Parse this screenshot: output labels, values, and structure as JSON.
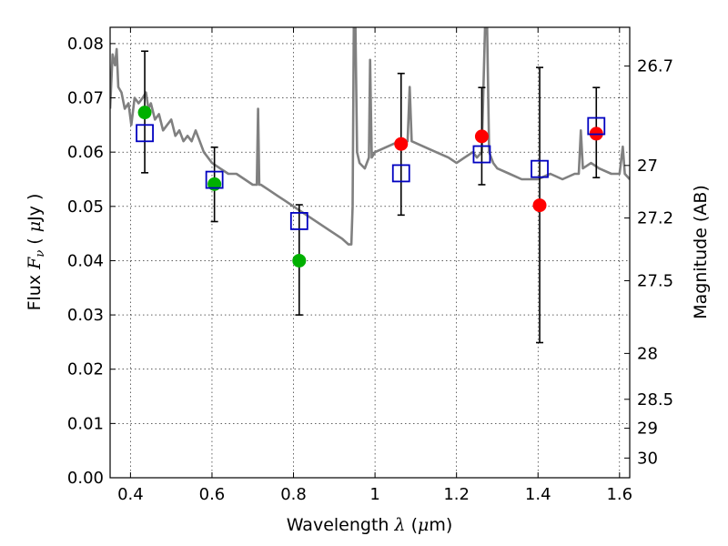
{
  "chart_data": {
    "type": "scatter",
    "xlabel": {
      "pre": "Wavelength  ",
      "sym": "λ",
      "post": " (",
      "mu": "μ",
      "unit": "m)"
    },
    "ylabel": {
      "pre": "Flux  ",
      "sym": "F",
      "sub": "ν",
      "post": "  ( ",
      "mu": "μ",
      "unit": "Jy )"
    },
    "y2label": "Magnitude (AB)",
    "xlim": [
      0.35,
      1.625
    ],
    "ylim": [
      0.0,
      0.083
    ],
    "grid": true,
    "x_ticks": [
      0.4,
      0.6,
      0.8,
      1.0,
      1.2,
      1.4,
      1.6
    ],
    "x_tick_labels": [
      "0.4",
      "0.6",
      "0.8",
      "1",
      "1.2",
      "1.4",
      "1.6"
    ],
    "y_ticks": [
      0.0,
      0.01,
      0.02,
      0.03,
      0.04,
      0.05,
      0.06,
      0.07,
      0.08
    ],
    "y_tick_labels": [
      "0.00",
      "0.01",
      "0.02",
      "0.03",
      "0.04",
      "0.05",
      "0.06",
      "0.07",
      "0.08"
    ],
    "mag_ticks": [
      26.7,
      27.0,
      27.2,
      27.5,
      28.0,
      28.5,
      29.0,
      30.0
    ],
    "mag_tick_labels": [
      "26.7",
      "27",
      "27.2",
      "27.5",
      "28",
      "28.5",
      "29",
      "30"
    ],
    "colors": {
      "model": "#808080",
      "obs_optical": "#00b000",
      "obs_ir": "#ff0000",
      "synthetic": "#0000c0",
      "errorbar": "#000000"
    },
    "model_spectrum": [
      [
        0.35,
        0.068
      ],
      [
        0.356,
        0.078
      ],
      [
        0.362,
        0.076
      ],
      [
        0.366,
        0.079
      ],
      [
        0.37,
        0.072
      ],
      [
        0.378,
        0.071
      ],
      [
        0.386,
        0.068
      ],
      [
        0.395,
        0.069
      ],
      [
        0.402,
        0.065
      ],
      [
        0.41,
        0.07
      ],
      [
        0.42,
        0.069
      ],
      [
        0.43,
        0.07
      ],
      [
        0.438,
        0.071
      ],
      [
        0.444,
        0.068
      ],
      [
        0.45,
        0.069
      ],
      [
        0.46,
        0.066
      ],
      [
        0.47,
        0.067
      ],
      [
        0.48,
        0.064
      ],
      [
        0.49,
        0.065
      ],
      [
        0.5,
        0.066
      ],
      [
        0.51,
        0.063
      ],
      [
        0.52,
        0.064
      ],
      [
        0.53,
        0.062
      ],
      [
        0.54,
        0.063
      ],
      [
        0.55,
        0.062
      ],
      [
        0.56,
        0.064
      ],
      [
        0.57,
        0.062
      ],
      [
        0.58,
        0.06
      ],
      [
        0.59,
        0.059
      ],
      [
        0.6,
        0.058
      ],
      [
        0.62,
        0.057
      ],
      [
        0.64,
        0.056
      ],
      [
        0.66,
        0.056
      ],
      [
        0.68,
        0.055
      ],
      [
        0.7,
        0.054
      ],
      [
        0.71,
        0.054
      ],
      [
        0.713,
        0.068
      ],
      [
        0.716,
        0.054
      ],
      [
        0.72,
        0.054
      ],
      [
        0.74,
        0.053
      ],
      [
        0.76,
        0.052
      ],
      [
        0.78,
        0.051
      ],
      [
        0.8,
        0.05
      ],
      [
        0.82,
        0.049
      ],
      [
        0.84,
        0.048
      ],
      [
        0.86,
        0.047
      ],
      [
        0.88,
        0.046
      ],
      [
        0.9,
        0.045
      ],
      [
        0.92,
        0.044
      ],
      [
        0.935,
        0.043
      ],
      [
        0.942,
        0.043
      ],
      [
        0.945,
        0.05
      ],
      [
        0.948,
        0.083
      ],
      [
        0.952,
        0.083
      ],
      [
        0.956,
        0.06
      ],
      [
        0.962,
        0.058
      ],
      [
        0.975,
        0.057
      ],
      [
        0.985,
        0.059
      ],
      [
        0.988,
        0.077
      ],
      [
        0.992,
        0.059
      ],
      [
        1.0,
        0.06
      ],
      [
        1.03,
        0.061
      ],
      [
        1.06,
        0.062
      ],
      [
        1.08,
        0.062
      ],
      [
        1.085,
        0.072
      ],
      [
        1.09,
        0.062
      ],
      [
        1.12,
        0.061
      ],
      [
        1.15,
        0.06
      ],
      [
        1.18,
        0.059
      ],
      [
        1.2,
        0.058
      ],
      [
        1.22,
        0.059
      ],
      [
        1.24,
        0.06
      ],
      [
        1.25,
        0.059
      ],
      [
        1.262,
        0.06
      ],
      [
        1.27,
        0.083
      ],
      [
        1.275,
        0.083
      ],
      [
        1.28,
        0.06
      ],
      [
        1.29,
        0.058
      ],
      [
        1.3,
        0.057
      ],
      [
        1.33,
        0.056
      ],
      [
        1.36,
        0.055
      ],
      [
        1.4,
        0.055
      ],
      [
        1.43,
        0.056
      ],
      [
        1.46,
        0.055
      ],
      [
        1.49,
        0.056
      ],
      [
        1.5,
        0.056
      ],
      [
        1.505,
        0.064
      ],
      [
        1.51,
        0.057
      ],
      [
        1.53,
        0.058
      ],
      [
        1.55,
        0.057
      ],
      [
        1.58,
        0.056
      ],
      [
        1.6,
        0.056
      ],
      [
        1.608,
        0.061
      ],
      [
        1.613,
        0.056
      ],
      [
        1.625,
        0.055
      ]
    ],
    "series": [
      {
        "marker": "circle",
        "x": [
          0.435,
          0.606,
          0.814,
          1.064,
          1.262,
          1.404,
          1.543
        ],
        "y": [
          0.0673,
          0.0541,
          0.04,
          0.0615,
          0.0629,
          0.0502,
          0.0634
        ],
        "colors": [
          "#00b000",
          "#00b000",
          "#00b000",
          "#ff0000",
          "#ff0000",
          "#ff0000",
          "#ff0000"
        ],
        "y_err_low": [
          0.0562,
          0.0472,
          0.03,
          0.0484,
          0.054,
          0.0249,
          0.0553
        ],
        "y_err_high": [
          0.0786,
          0.0609,
          0.0503,
          0.0745,
          0.0719,
          0.0756,
          0.0719
        ]
      },
      {
        "marker": "open-square",
        "x": [
          0.435,
          0.606,
          0.814,
          1.064,
          1.262,
          1.404,
          1.543
        ],
        "y": [
          0.0635,
          0.0549,
          0.0473,
          0.0561,
          0.0596,
          0.0569,
          0.0648
        ]
      }
    ]
  }
}
